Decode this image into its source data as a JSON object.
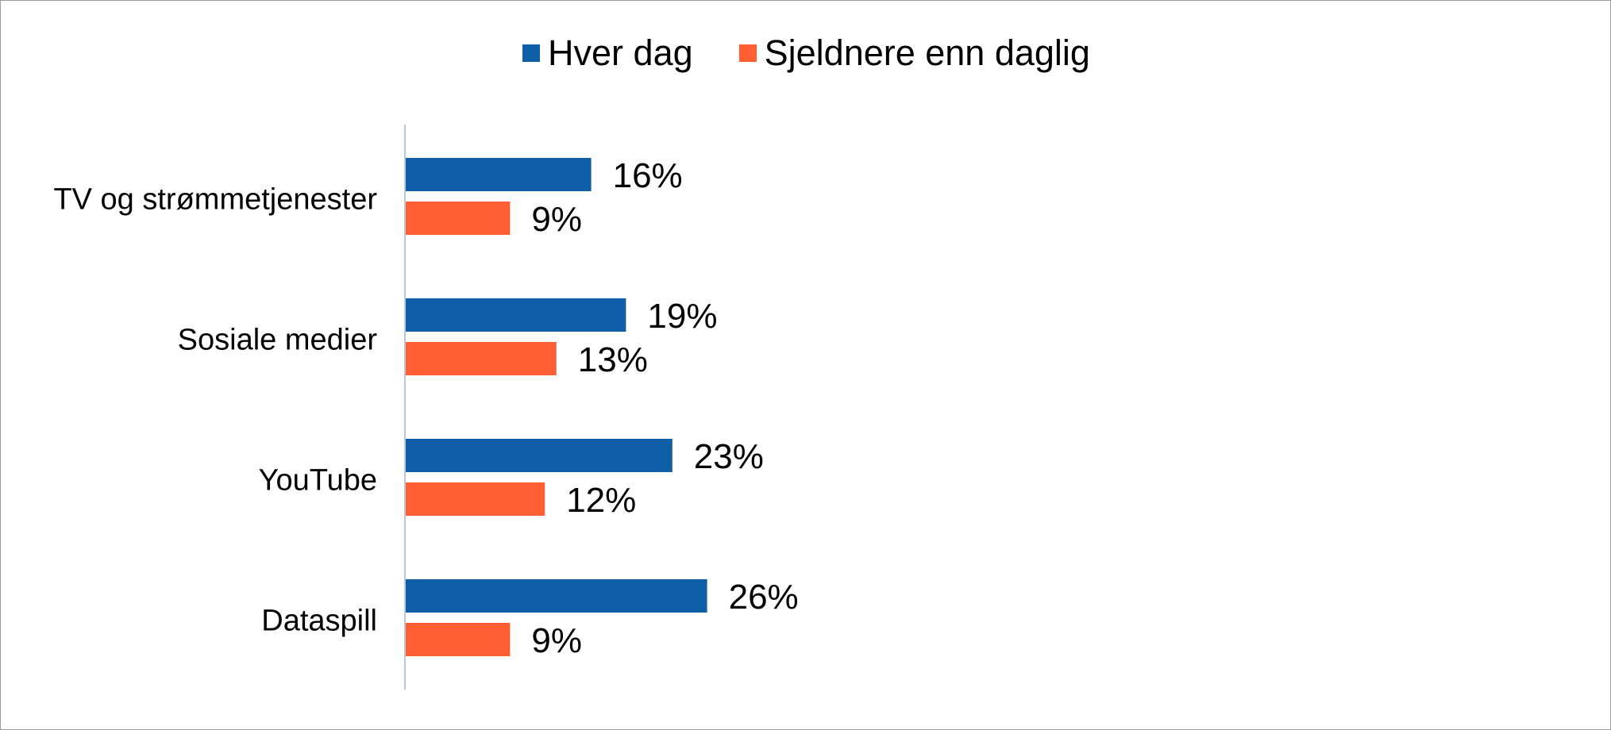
{
  "chart_data": {
    "type": "bar",
    "orientation": "horizontal",
    "categories": [
      "TV og strømmetjenester",
      "Sosiale medier",
      "YouTube",
      "Dataspill"
    ],
    "series": [
      {
        "name": "Hver dag",
        "color": "#0f5ea8",
        "values": [
          16,
          19,
          23,
          26
        ],
        "labels": [
          "16%",
          "19%",
          "23%",
          "26%"
        ]
      },
      {
        "name": "Sjeldnere enn daglig",
        "color": "#ff5f33",
        "values": [
          9,
          13,
          12,
          9
        ],
        "labels": [
          "9%",
          "13%",
          "12%",
          "9%"
        ]
      }
    ],
    "xlim": [
      0,
      100
    ],
    "grid": false,
    "legend_position": "top"
  }
}
